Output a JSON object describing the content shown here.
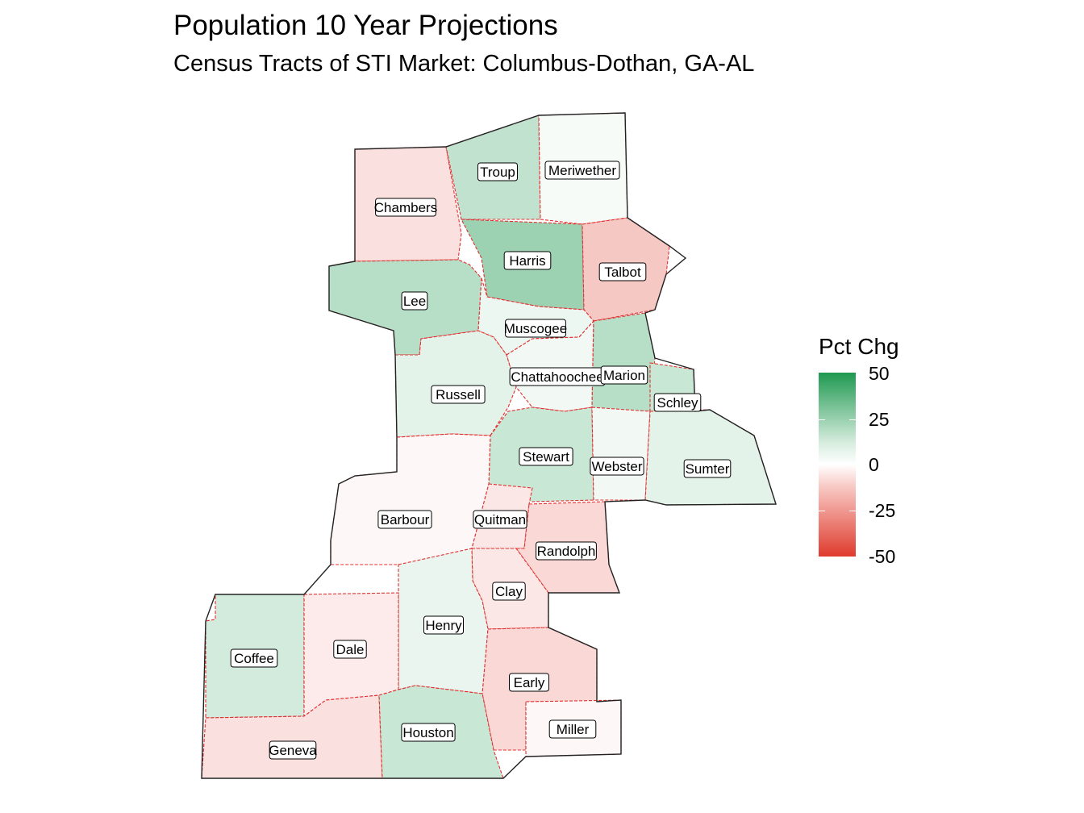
{
  "title": "Population 10 Year Projections",
  "subtitle": "Census Tracts of STI Market: Columbus-Dothan,  GA-AL",
  "legend": {
    "title": "Pct Chg",
    "ticks": [
      "50",
      "25",
      "0",
      "-25",
      "-50"
    ],
    "colors": {
      "high": "#1f9950",
      "mid": "#ffffff",
      "low": "#df3b2e"
    }
  },
  "counties": [
    {
      "name": "Chambers",
      "pct": -8
    },
    {
      "name": "Troup",
      "pct": 14
    },
    {
      "name": "Meriwether",
      "pct": 2
    },
    {
      "name": "Harris",
      "pct": 22
    },
    {
      "name": "Talbot",
      "pct": -14
    },
    {
      "name": "Lee",
      "pct": 16
    },
    {
      "name": "Muscogee",
      "pct": 4
    },
    {
      "name": "Chattahoochee",
      "pct": 3
    },
    {
      "name": "Marion",
      "pct": 16
    },
    {
      "name": "Schley",
      "pct": 12
    },
    {
      "name": "Russell",
      "pct": 6
    },
    {
      "name": "Stewart",
      "pct": 12
    },
    {
      "name": "Webster",
      "pct": 3
    },
    {
      "name": "Sumter",
      "pct": 6
    },
    {
      "name": "Barbour",
      "pct": -2
    },
    {
      "name": "Quitman",
      "pct": -6
    },
    {
      "name": "Randolph",
      "pct": -10
    },
    {
      "name": "Clay",
      "pct": -6
    },
    {
      "name": "Henry",
      "pct": 5
    },
    {
      "name": "Coffee",
      "pct": 10
    },
    {
      "name": "Dale",
      "pct": -5
    },
    {
      "name": "Early",
      "pct": -10
    },
    {
      "name": "Geneva",
      "pct": -8
    },
    {
      "name": "Houston",
      "pct": 12
    },
    {
      "name": "Miller",
      "pct": -2
    }
  ]
}
